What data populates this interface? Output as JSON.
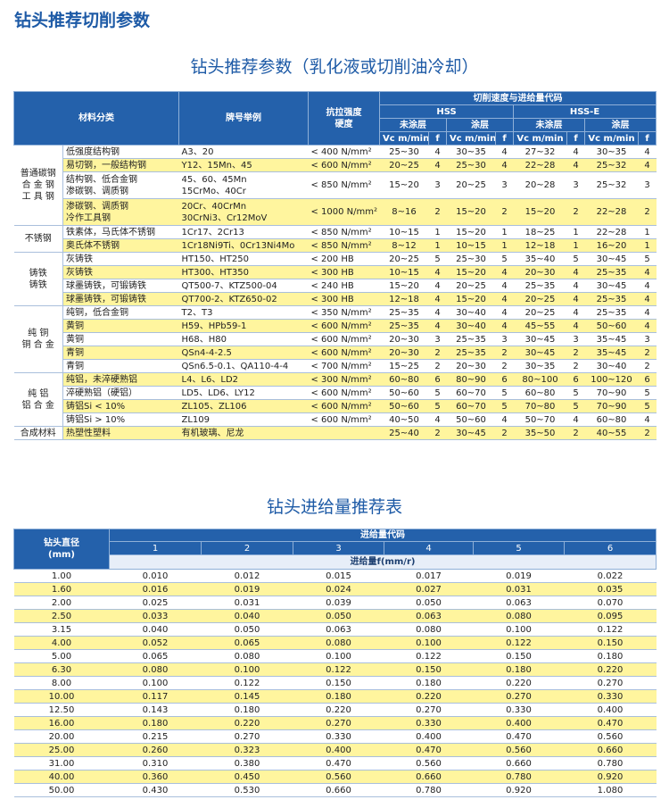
{
  "header": {
    "title": "钻头推荐切削参数"
  },
  "cutting": {
    "title": "钻头推荐参数（乳化液或切削油冷却）",
    "columns": {
      "material": "材料分类",
      "grade": "牌号举例",
      "strength": [
        "抗拉强度",
        "硬度"
      ],
      "speed": "切削速度与进给量代码",
      "hss": "HSS",
      "hsse": "HSS-E",
      "uncoated": "未涂层",
      "coated": "涂层",
      "vc": "Vc m/min",
      "f": "f"
    },
    "groups": [
      {
        "name": [
          "普通碳钢",
          "合 金 钢",
          "工 具 钢"
        ],
        "rows": [
          {
            "material": [
              "低强度结构钢"
            ],
            "grade": [
              "A3、20"
            ],
            "strength": "< 400 N/mm²",
            "values": [
              "25~30",
              "4",
              "30~35",
              "4",
              "27~32",
              "4",
              "30~35",
              "4"
            ]
          },
          {
            "material": [
              "易切钢，一般结构钢"
            ],
            "grade": [
              "Y12、15Mn、45"
            ],
            "strength": "< 600 N/mm²",
            "values": [
              "20~25",
              "4",
              "25~30",
              "4",
              "22~28",
              "4",
              "25~32",
              "4"
            ]
          },
          {
            "material": [
              "结构钢、低合金钢",
              "渗碳钢、调质钢"
            ],
            "grade": [
              "45、60、45Mn",
              "15CrMo、40Cr"
            ],
            "strength": "< 850 N/mm²",
            "values": [
              "15~20",
              "3",
              "20~25",
              "3",
              "20~28",
              "3",
              "25~32",
              "3"
            ]
          },
          {
            "material": [
              "渗碳钢、调质钢",
              "冷作工具钢"
            ],
            "grade": [
              "20Cr、40CrMn",
              "30CrNi3、Cr12MoV"
            ],
            "strength": "< 1000 N/mm²",
            "values": [
              "8~16",
              "2",
              "15~20",
              "2",
              "15~20",
              "2",
              "22~28",
              "2"
            ]
          }
        ]
      },
      {
        "name": [
          "不锈钢"
        ],
        "rows": [
          {
            "material": [
              "铁素体，马氏体不锈钢"
            ],
            "grade": [
              "1Cr17、2Cr13"
            ],
            "strength": "< 850 N/mm²",
            "values": [
              "10~15",
              "1",
              "15~20",
              "1",
              "18~25",
              "1",
              "22~28",
              "1"
            ]
          },
          {
            "material": [
              "奥氏体不锈钢"
            ],
            "grade": [
              "1Cr18Ni9Ti、0Cr13Ni4Mo"
            ],
            "strength": "< 850 N/mm²",
            "values": [
              "8~12",
              "1",
              "10~15",
              "1",
              "12~18",
              "1",
              "16~20",
              "1"
            ]
          }
        ]
      },
      {
        "name": [
          "铸铁",
          "铸铁"
        ],
        "rows": [
          {
            "material": [
              "灰铸铁"
            ],
            "grade": [
              "HT150、HT250"
            ],
            "strength": "< 200 HB",
            "values": [
              "20~25",
              "5",
              "25~30",
              "5",
              "35~40",
              "5",
              "30~45",
              "5"
            ]
          },
          {
            "material": [
              "灰铸铁"
            ],
            "grade": [
              "HT300、HT350"
            ],
            "strength": "< 300 HB",
            "values": [
              "10~15",
              "4",
              "15~20",
              "4",
              "20~30",
              "4",
              "25~35",
              "4"
            ]
          },
          {
            "material": [
              "球墨铸铁，可锻铸铁"
            ],
            "grade": [
              "QT500-7、KTZ500-04"
            ],
            "strength": "< 240 HB",
            "values": [
              "15~20",
              "4",
              "20~25",
              "4",
              "25~35",
              "4",
              "30~45",
              "4"
            ]
          },
          {
            "material": [
              "球墨铸铁，可锻铸铁"
            ],
            "grade": [
              "QT700-2、KTZ650-02"
            ],
            "strength": "< 300 HB",
            "values": [
              "12~18",
              "4",
              "15~20",
              "4",
              "20~25",
              "4",
              "25~35",
              "4"
            ]
          }
        ]
      },
      {
        "name": [
          "纯    铜",
          "铜 合 金"
        ],
        "rows": [
          {
            "material": [
              "纯铜，低合金铜"
            ],
            "grade": [
              "T2、T3"
            ],
            "strength": "< 350 N/mm²",
            "values": [
              "25~35",
              "4",
              "30~40",
              "4",
              "20~25",
              "4",
              "25~35",
              "4"
            ]
          },
          {
            "material": [
              "黄铜"
            ],
            "grade": [
              "H59、HPb59-1"
            ],
            "strength": "< 600 N/mm²",
            "values": [
              "25~35",
              "4",
              "30~40",
              "4",
              "45~55",
              "4",
              "50~60",
              "4"
            ]
          },
          {
            "material": [
              "黄铜"
            ],
            "grade": [
              "H68、H80"
            ],
            "strength": "< 600 N/mm²",
            "values": [
              "20~30",
              "3",
              "25~35",
              "3",
              "30~45",
              "3",
              "35~45",
              "3"
            ]
          },
          {
            "material": [
              "青铜"
            ],
            "grade": [
              "QSn4-4-2.5"
            ],
            "strength": "< 600 N/mm²",
            "values": [
              "20~30",
              "2",
              "25~35",
              "2",
              "30~45",
              "2",
              "35~45",
              "2"
            ]
          },
          {
            "material": [
              "青铜"
            ],
            "grade": [
              "QSn6.5-0.1、QA110-4-4"
            ],
            "strength": "< 700 N/mm²",
            "values": [
              "15~25",
              "2",
              "20~30",
              "2",
              "30~35",
              "2",
              "30~40",
              "2"
            ]
          }
        ]
      },
      {
        "name": [
          "纯    铝",
          "铝 合 金"
        ],
        "rows": [
          {
            "material": [
              "纯铝，未淬硬熟铝"
            ],
            "grade": [
              "L4、L6、LD2"
            ],
            "strength": "< 300 N/mm²",
            "values": [
              "60~80",
              "6",
              "80~90",
              "6",
              "80~100",
              "6",
              "100~120",
              "6"
            ]
          },
          {
            "material": [
              "淬硬熟铝（硬铝）"
            ],
            "grade": [
              "LD5、LD6、LY12"
            ],
            "strength": "< 600 N/mm²",
            "values": [
              "50~60",
              "5",
              "60~70",
              "5",
              "60~80",
              "5",
              "70~90",
              "5"
            ]
          },
          {
            "material": [
              "铸铝Si < 10%"
            ],
            "grade": [
              "ZL105、ZL106"
            ],
            "strength": "< 600 N/mm²",
            "values": [
              "50~60",
              "5",
              "60~70",
              "5",
              "70~80",
              "5",
              "70~90",
              "5"
            ]
          },
          {
            "material": [
              "铸铝Si > 10%"
            ],
            "grade": [
              "ZL109"
            ],
            "strength": "< 600 N/mm²",
            "values": [
              "40~50",
              "4",
              "50~60",
              "4",
              "50~70",
              "4",
              "60~80",
              "4"
            ]
          }
        ]
      },
      {
        "name": [
          "合成材料"
        ],
        "rows": [
          {
            "material": [
              "热塑性塑料"
            ],
            "grade": [
              "有机玻璃、尼龙"
            ],
            "values": [
              "25~40",
              "2",
              "30~45",
              "2",
              "35~50",
              "2",
              "40~55",
              "2"
            ]
          }
        ]
      }
    ]
  },
  "feed": {
    "title": "钻头进给量推荐表",
    "columns": {
      "diameter": [
        "钻头直径",
        "(mm)"
      ],
      "code": "进给量代码",
      "codes": [
        1,
        2,
        3,
        4,
        5,
        6
      ],
      "feed": "进给量f(mm/r)"
    },
    "rows": [
      {
        "d": "1.00",
        "values": [
          "0.010",
          "0.012",
          "0.015",
          "0.017",
          "0.019",
          "0.022"
        ]
      },
      {
        "d": "1.60",
        "values": [
          "0.016",
          "0.019",
          "0.024",
          "0.027",
          "0.031",
          "0.035"
        ]
      },
      {
        "d": "2.00",
        "values": [
          "0.025",
          "0.031",
          "0.039",
          "0.050",
          "0.063",
          "0.070"
        ]
      },
      {
        "d": "2.50",
        "values": [
          "0.033",
          "0.040",
          "0.050",
          "0.063",
          "0.080",
          "0.095"
        ]
      },
      {
        "d": "3.15",
        "values": [
          "0.040",
          "0.050",
          "0.063",
          "0.080",
          "0.100",
          "0.122"
        ]
      },
      {
        "d": "4.00",
        "values": [
          "0.052",
          "0.065",
          "0.080",
          "0.100",
          "0.122",
          "0.150"
        ]
      },
      {
        "d": "5.00",
        "values": [
          "0.065",
          "0.080",
          "0.100",
          "0.122",
          "0.150",
          "0.180"
        ]
      },
      {
        "d": "6.30",
        "values": [
          "0.080",
          "0.100",
          "0.122",
          "0.150",
          "0.180",
          "0.220"
        ]
      },
      {
        "d": "8.00",
        "values": [
          "0.100",
          "0.122",
          "0.150",
          "0.180",
          "0.220",
          "0.270"
        ]
      },
      {
        "d": "10.00",
        "values": [
          "0.117",
          "0.145",
          "0.180",
          "0.220",
          "0.270",
          "0.330"
        ]
      },
      {
        "d": "12.50",
        "values": [
          "0.143",
          "0.180",
          "0.220",
          "0.270",
          "0.330",
          "0.400"
        ]
      },
      {
        "d": "16.00",
        "values": [
          "0.180",
          "0.220",
          "0.270",
          "0.330",
          "0.400",
          "0.470"
        ]
      },
      {
        "d": "20.00",
        "values": [
          "0.215",
          "0.270",
          "0.330",
          "0.400",
          "0.470",
          "0.560"
        ]
      },
      {
        "d": "25.00",
        "values": [
          "0.260",
          "0.323",
          "0.400",
          "0.470",
          "0.560",
          "0.660"
        ]
      },
      {
        "d": "31.00",
        "values": [
          "0.310",
          "0.380",
          "0.470",
          "0.560",
          "0.660",
          "0.780"
        ]
      },
      {
        "d": "40.00",
        "values": [
          "0.360",
          "0.450",
          "0.560",
          "0.660",
          "0.780",
          "0.920"
        ]
      },
      {
        "d": "50.00",
        "values": [
          "0.430",
          "0.530",
          "0.660",
          "0.780",
          "0.920",
          "1.080"
        ]
      }
    ]
  }
}
